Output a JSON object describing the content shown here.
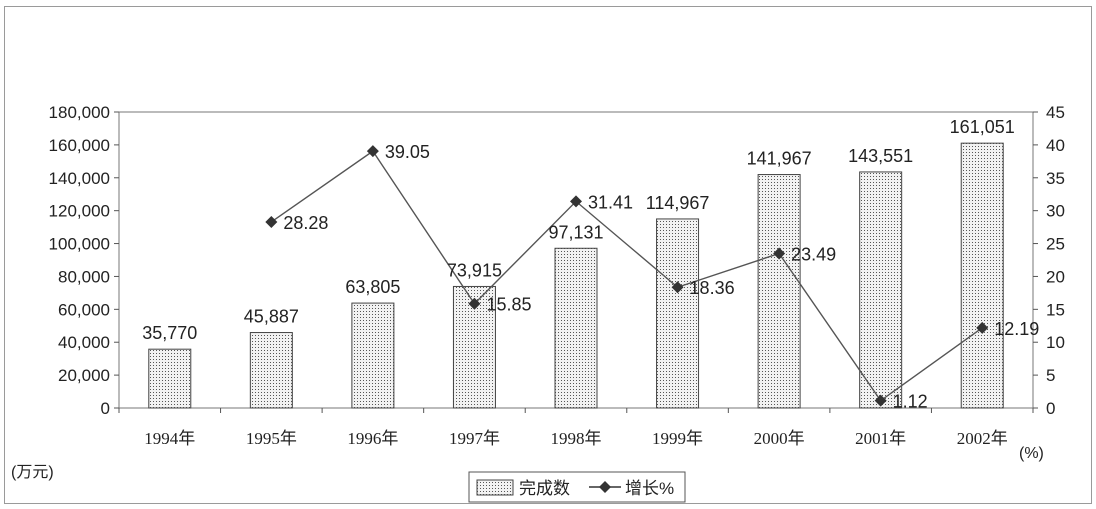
{
  "chart_data": {
    "type": "bar",
    "categories": [
      "1994年",
      "1995年",
      "1996年",
      "1997年",
      "1998年",
      "1999年",
      "2000年",
      "2001年",
      "2002年"
    ],
    "series": [
      {
        "name": "完成数",
        "type": "bar",
        "axis": "left",
        "values": [
          35770,
          45887,
          63805,
          73915,
          97131,
          114967,
          141967,
          143551,
          161051
        ],
        "labels": [
          "35,770",
          "45,887",
          "63,805",
          "73,915",
          "97,131",
          "114,967",
          "141,967",
          "143,551",
          "161,051"
        ]
      },
      {
        "name": "增长%",
        "type": "line",
        "axis": "right",
        "values": [
          null,
          28.28,
          39.05,
          15.85,
          31.41,
          18.36,
          23.49,
          1.12,
          12.19
        ],
        "labels": [
          "",
          "28.28",
          "39.05",
          "15.85",
          "31.41",
          "18.36",
          "23.49",
          "1.12",
          "12.19"
        ]
      }
    ],
    "y_left": {
      "unit": "(万元)",
      "ylim": [
        0,
        180000
      ],
      "ticks": [
        "0",
        "20,000",
        "40,000",
        "60,000",
        "80,000",
        "100,000",
        "120,000",
        "140,000",
        "160,000",
        "180,000"
      ]
    },
    "y_right": {
      "unit": "(%)",
      "ylim": [
        0,
        45
      ],
      "ticks": [
        "0",
        "5",
        "10",
        "15",
        "20",
        "25",
        "30",
        "35",
        "40",
        "45"
      ]
    },
    "legend": {
      "position": "bottom-center",
      "items": [
        "完成数",
        "增长%"
      ]
    },
    "grid": false
  }
}
